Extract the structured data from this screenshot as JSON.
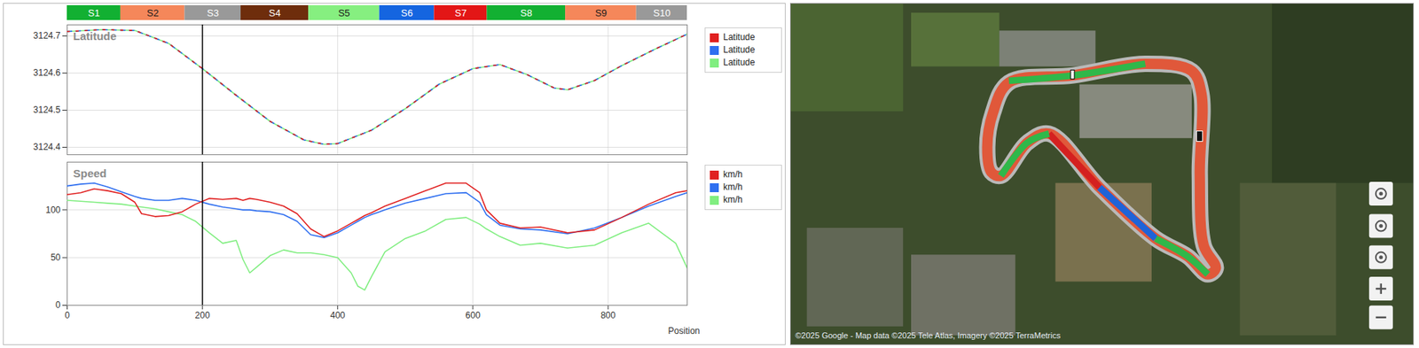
{
  "sectors": [
    {
      "name": "S1",
      "start": 0,
      "end": 79,
      "color": "#12b032"
    },
    {
      "name": "S2",
      "start": 79,
      "end": 174,
      "color": "#f5875a"
    },
    {
      "name": "S3",
      "start": 174,
      "end": 257,
      "color": "#999999"
    },
    {
      "name": "S4",
      "start": 257,
      "end": 357,
      "color": "#6e2d0c"
    },
    {
      "name": "S5",
      "start": 357,
      "end": 462,
      "color": "#86ef80"
    },
    {
      "name": "S6",
      "start": 462,
      "end": 543,
      "color": "#1565e0"
    },
    {
      "name": "S7",
      "start": 543,
      "end": 621,
      "color": "#e31616"
    },
    {
      "name": "S8",
      "start": 621,
      "end": 737,
      "color": "#12b032"
    },
    {
      "name": "S9",
      "start": 737,
      "end": 842,
      "color": "#f5875a"
    },
    {
      "name": "S10",
      "start": 842,
      "end": 917,
      "color": "#999999"
    }
  ],
  "chart_data": [
    {
      "type": "line",
      "title": "Latitude",
      "x": [
        0,
        50,
        100,
        150,
        200,
        250,
        300,
        350,
        380,
        400,
        450,
        500,
        550,
        600,
        640,
        680,
        720,
        740,
        780,
        820,
        870,
        917
      ],
      "series": [
        {
          "name": "Latitude",
          "color": "#e02020",
          "values": [
            3124.712,
            3124.717,
            3124.715,
            3124.68,
            3124.612,
            3124.54,
            3124.47,
            3124.42,
            3124.408,
            3124.41,
            3124.446,
            3124.504,
            3124.57,
            3124.612,
            3124.623,
            3124.596,
            3124.56,
            3124.555,
            3124.58,
            3124.62,
            3124.665,
            3124.705
          ]
        },
        {
          "name": "Latitude",
          "color": "#2f6ff0",
          "values": [
            3124.712,
            3124.717,
            3124.715,
            3124.68,
            3124.612,
            3124.54,
            3124.47,
            3124.42,
            3124.408,
            3124.41,
            3124.446,
            3124.504,
            3124.57,
            3124.612,
            3124.623,
            3124.596,
            3124.56,
            3124.555,
            3124.58,
            3124.62,
            3124.665,
            3124.705
          ]
        },
        {
          "name": "Latitude",
          "color": "#80ee80",
          "values": [
            3124.712,
            3124.717,
            3124.715,
            3124.68,
            3124.612,
            3124.54,
            3124.47,
            3124.42,
            3124.408,
            3124.41,
            3124.446,
            3124.504,
            3124.57,
            3124.612,
            3124.623,
            3124.596,
            3124.56,
            3124.555,
            3124.58,
            3124.62,
            3124.665,
            3124.705
          ]
        }
      ],
      "xlim": [
        0,
        917
      ],
      "xticks": [
        0,
        200,
        400,
        600,
        800
      ],
      "ylim": [
        3124.38,
        3124.73
      ],
      "yticks": [
        3124.4,
        3124.5,
        3124.6,
        3124.7
      ],
      "grid": true,
      "legend": "right",
      "tick_labels": "y",
      "cursor": 200
    },
    {
      "type": "line",
      "title": "Speed",
      "x_label": "Position",
      "x": [
        0,
        20,
        40,
        60,
        80,
        100,
        110,
        130,
        150,
        170,
        190,
        210,
        230,
        250,
        260,
        270,
        280,
        300,
        320,
        340,
        360,
        380,
        400,
        420,
        430,
        440,
        450,
        470,
        500,
        530,
        560,
        590,
        610,
        620,
        640,
        670,
        700,
        740,
        780,
        820,
        860,
        900,
        917
      ],
      "series": [
        {
          "name": "km/h",
          "color": "#e02020",
          "values": [
            116,
            118,
            122,
            120,
            117,
            108,
            96,
            93,
            94,
            98,
            106,
            112,
            111,
            112,
            110,
            112,
            111,
            108,
            104,
            96,
            80,
            72,
            78,
            86,
            90,
            94,
            97,
            104,
            112,
            120,
            128,
            128,
            118,
            100,
            86,
            81,
            82,
            76,
            79,
            92,
            106,
            118,
            120
          ]
        },
        {
          "name": "km/h",
          "color": "#2f6ff0",
          "values": [
            125,
            127,
            128,
            124,
            119,
            114,
            112,
            110,
            110,
            112,
            110,
            106,
            103,
            101,
            100,
            100,
            99,
            98,
            95,
            88,
            74,
            71,
            76,
            84,
            88,
            92,
            95,
            100,
            107,
            112,
            117,
            118,
            108,
            95,
            84,
            80,
            79,
            75,
            81,
            92,
            104,
            114,
            118
          ]
        },
        {
          "name": "km/h",
          "color": "#80ee80",
          "values": [
            110,
            109,
            108,
            107,
            106,
            104,
            103,
            101,
            98,
            95,
            88,
            76,
            65,
            68,
            48,
            34,
            40,
            52,
            58,
            55,
            55,
            53,
            50,
            34,
            20,
            16,
            30,
            56,
            70,
            78,
            90,
            92,
            85,
            80,
            72,
            63,
            65,
            60,
            63,
            76,
            86,
            65,
            39
          ]
        }
      ],
      "xlim": [
        0,
        917
      ],
      "xticks": [
        0,
        200,
        400,
        600,
        800
      ],
      "ylim": [
        0,
        150
      ],
      "yticks": [
        0,
        50,
        100
      ],
      "grid": true,
      "legend": "right",
      "cursor": 200
    }
  ],
  "map": {
    "attribution": "©2025 Google - Map data ©2025 Tele Atlas, Imagery ©2025 TerraMetrics"
  }
}
